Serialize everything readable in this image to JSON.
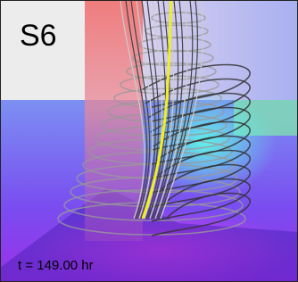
{
  "panel_label": "S6",
  "time_label": "t = 149.00 hr"
}
